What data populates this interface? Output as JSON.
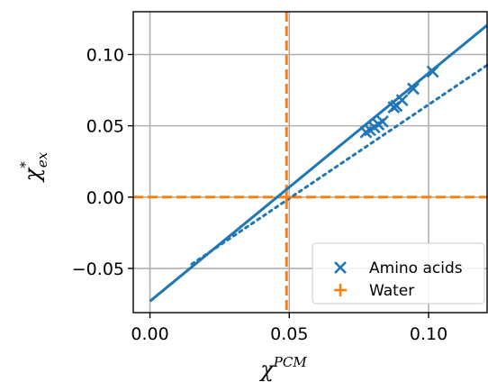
{
  "chart_data": {
    "type": "scatter",
    "xlabel": {
      "base": "χ",
      "sup": "PCM"
    },
    "ylabel": {
      "base": "χ",
      "sup": "*",
      "sub": "ex"
    },
    "xlim": [
      -0.006,
      0.121
    ],
    "ylim": [
      -0.081,
      0.13
    ],
    "xticks": [
      0.0,
      0.05,
      0.1
    ],
    "xtick_labels": [
      "0.00",
      "0.05",
      "0.10"
    ],
    "yticks": [
      -0.05,
      0.0,
      0.05,
      0.1
    ],
    "ytick_labels": [
      "−0.05",
      "0.00",
      "0.05",
      "0.10"
    ],
    "grid": true,
    "legend_position": "lower-right",
    "series": [
      {
        "name": "Amino acids",
        "marker": "x",
        "color": "#1f77b4",
        "points": [
          [
            0.0775,
            0.0455
          ],
          [
            0.079,
            0.047
          ],
          [
            0.0805,
            0.049
          ],
          [
            0.082,
            0.051
          ],
          [
            0.0835,
            0.053
          ],
          [
            0.0875,
            0.063
          ],
          [
            0.0885,
            0.064
          ],
          [
            0.0905,
            0.068
          ],
          [
            0.0945,
            0.076
          ],
          [
            0.1015,
            0.088
          ]
        ]
      },
      {
        "name": "Water",
        "marker": "+",
        "color": "#ff7f0e",
        "points": [
          [
            0.049,
            0.0
          ]
        ]
      }
    ],
    "lines": [
      {
        "style": "solid",
        "color": "#1f77b4",
        "points": [
          [
            0.0,
            -0.073
          ],
          [
            0.121,
            0.1205
          ]
        ]
      },
      {
        "style": "dotted",
        "color": "#1f77b4",
        "points": [
          [
            0.015,
            -0.047
          ],
          [
            0.121,
            0.0925
          ]
        ]
      },
      {
        "style": "dashed",
        "color": "#ff7f0e",
        "orientation": "vertical",
        "value": 0.049
      },
      {
        "style": "dashed",
        "color": "#ff7f0e",
        "orientation": "horizontal",
        "value": 0.0
      }
    ]
  }
}
